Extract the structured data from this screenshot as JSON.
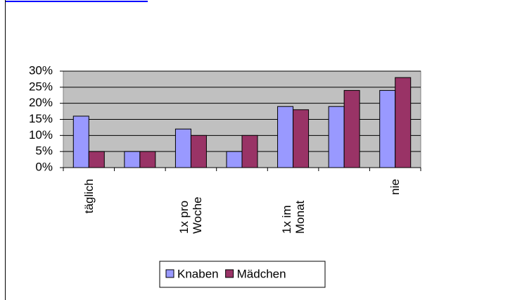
{
  "chart_data": {
    "type": "bar",
    "categories": [
      "täglich",
      null,
      "1x pro Woche",
      null,
      "1x im Monat",
      null,
      "nie"
    ],
    "series": [
      {
        "name": "Knaben",
        "color": "#9999ff",
        "values": [
          16,
          5,
          12,
          5,
          19,
          19,
          24
        ]
      },
      {
        "name": "Mädchen",
        "color": "#993366",
        "values": [
          5,
          5,
          10,
          10,
          18,
          24,
          28
        ]
      }
    ],
    "ylim": [
      0,
      30
    ],
    "yticks": [
      {
        "value": 0,
        "label": "0%"
      },
      {
        "value": 5,
        "label": "5%"
      },
      {
        "value": 10,
        "label": "10%"
      },
      {
        "value": 15,
        "label": "15%"
      },
      {
        "value": 20,
        "label": "20%"
      },
      {
        "value": 25,
        "label": "25%"
      },
      {
        "value": 30,
        "label": "30%"
      }
    ],
    "grid": true,
    "legend": "bottom"
  }
}
